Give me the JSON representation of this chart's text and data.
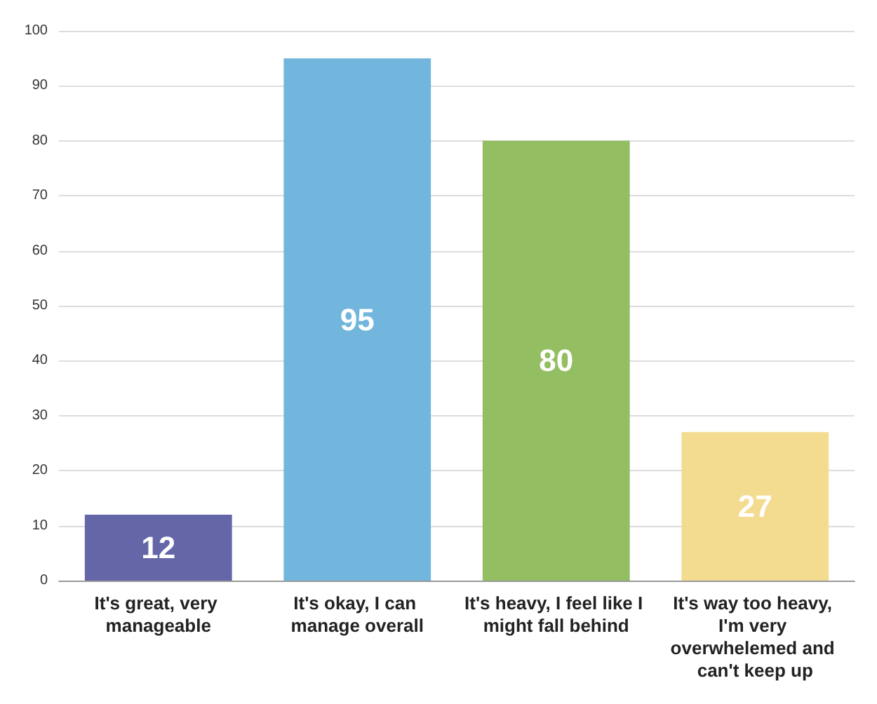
{
  "chart_data": {
    "type": "bar",
    "categories": [
      "It's great, very manageable",
      "It's okay, I can manage overall",
      "It's heavy, I feel like I might fall behind",
      "It's way too heavy, I'm very overwhelemed and can't keep up"
    ],
    "values": [
      12,
      95,
      80,
      27
    ],
    "colors": [
      "#6466a8",
      "#72b6de",
      "#94be62",
      "#f3dc90"
    ],
    "ylim": [
      0,
      100
    ],
    "yticks": [
      0,
      10,
      20,
      30,
      40,
      50,
      60,
      70,
      80,
      90,
      100
    ],
    "grid": "y",
    "data_labels": true
  }
}
